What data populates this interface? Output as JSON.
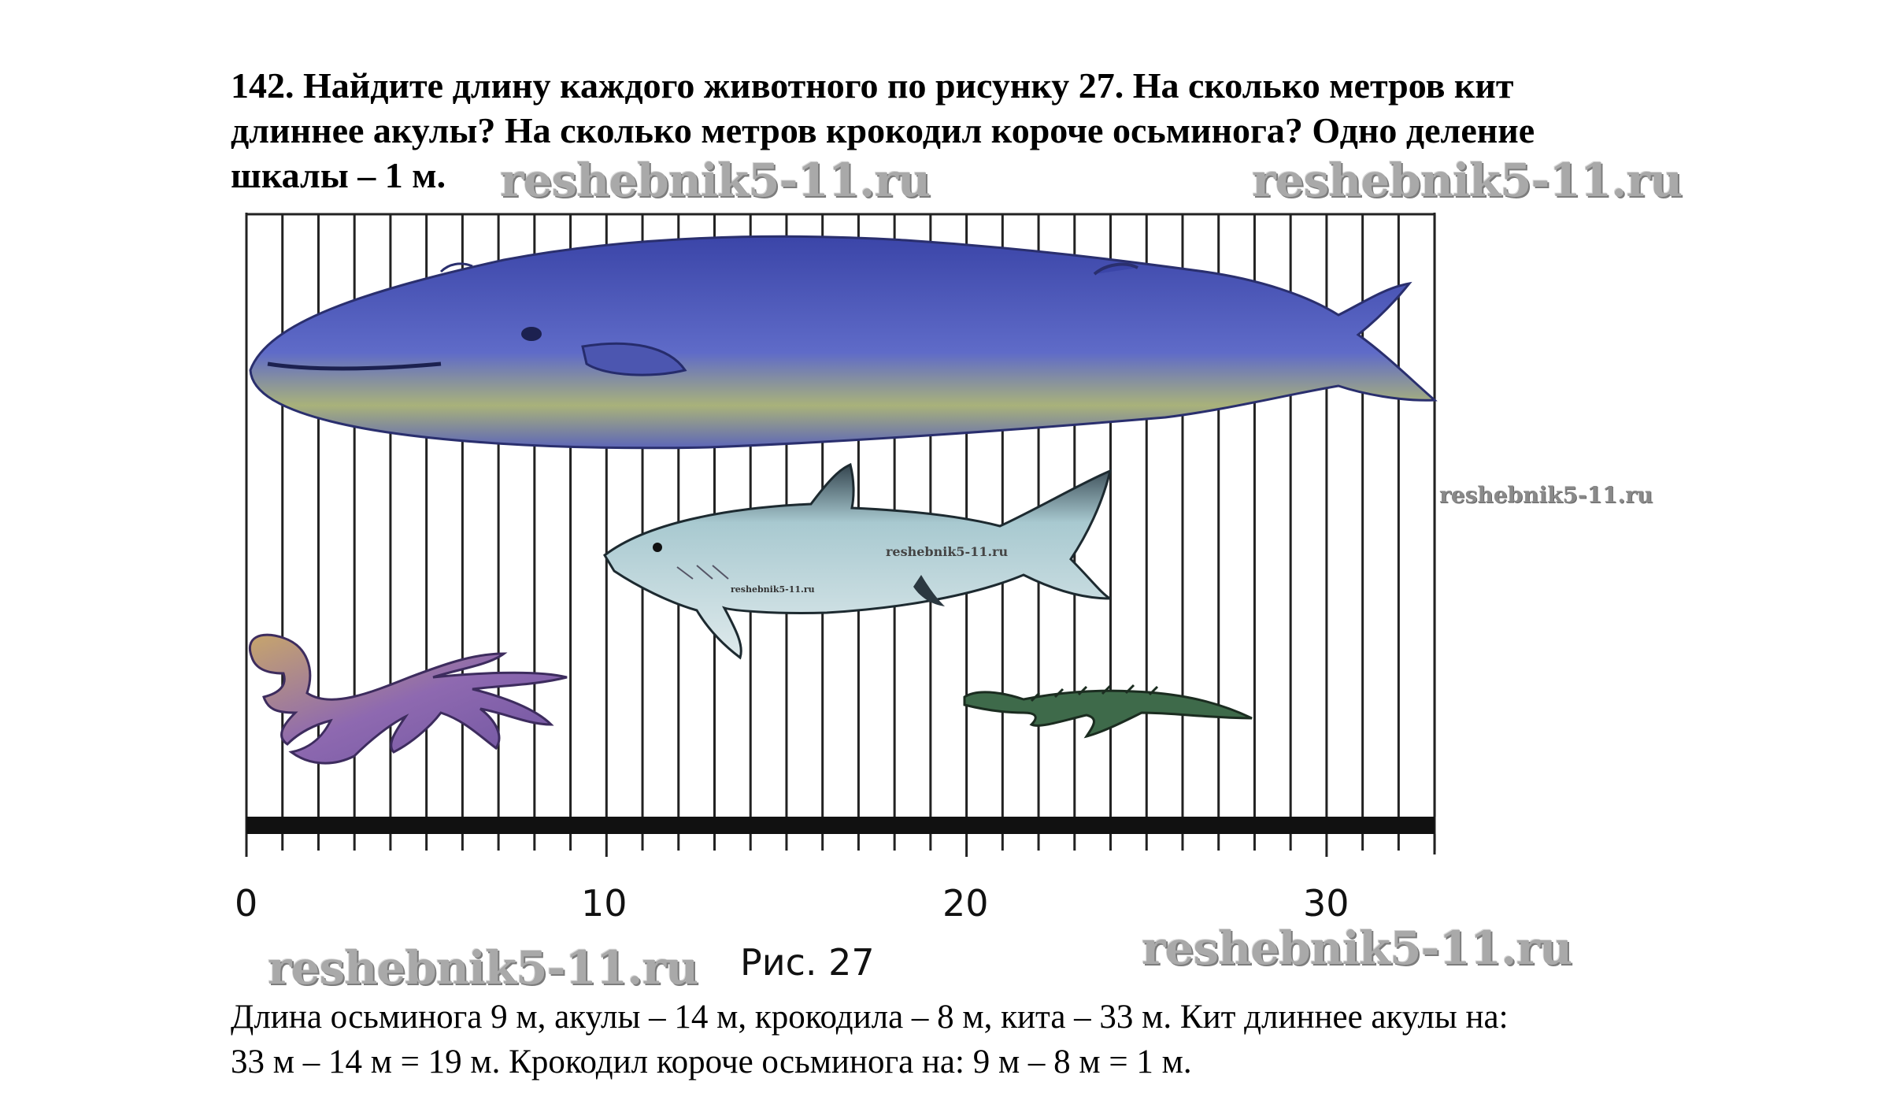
{
  "problem": {
    "line1": "142. Найдите длину каждого животного по рисунку 27. На сколько метров кит",
    "line2": "длиннее акулы? На сколько метров крокодил короче осьминога? Одно деление",
    "line3": "шкалы – 1 м."
  },
  "watermark": "reshebnik5-11.ru",
  "figure": {
    "caption": "Рис. 27",
    "scale_labels": [
      "0",
      "10",
      "20",
      "30"
    ],
    "scale": {
      "min": 0,
      "max": 33,
      "step": 1,
      "unit": "м"
    },
    "animals": [
      {
        "name": "whale-icon",
        "length_m": 33
      },
      {
        "name": "shark-icon",
        "length_m": 14
      },
      {
        "name": "octopus-icon",
        "length_m": 9
      },
      {
        "name": "crocodile-icon",
        "length_m": 8
      }
    ],
    "colors": {
      "whale": "#5059b8",
      "shark": "#8fb2bb",
      "octopus": "#8d6cb0",
      "crocodile": "#3e6a4a"
    }
  },
  "answer": {
    "line1": "Длина осьминога 9 м, акулы – 14 м, крокодила – 8 м, кита – 33 м. Кит длиннее акулы на:",
    "line2": "33 м – 14 м = 19 м. Крокодил короче осьминога на: 9 м – 8 м = 1 м."
  }
}
